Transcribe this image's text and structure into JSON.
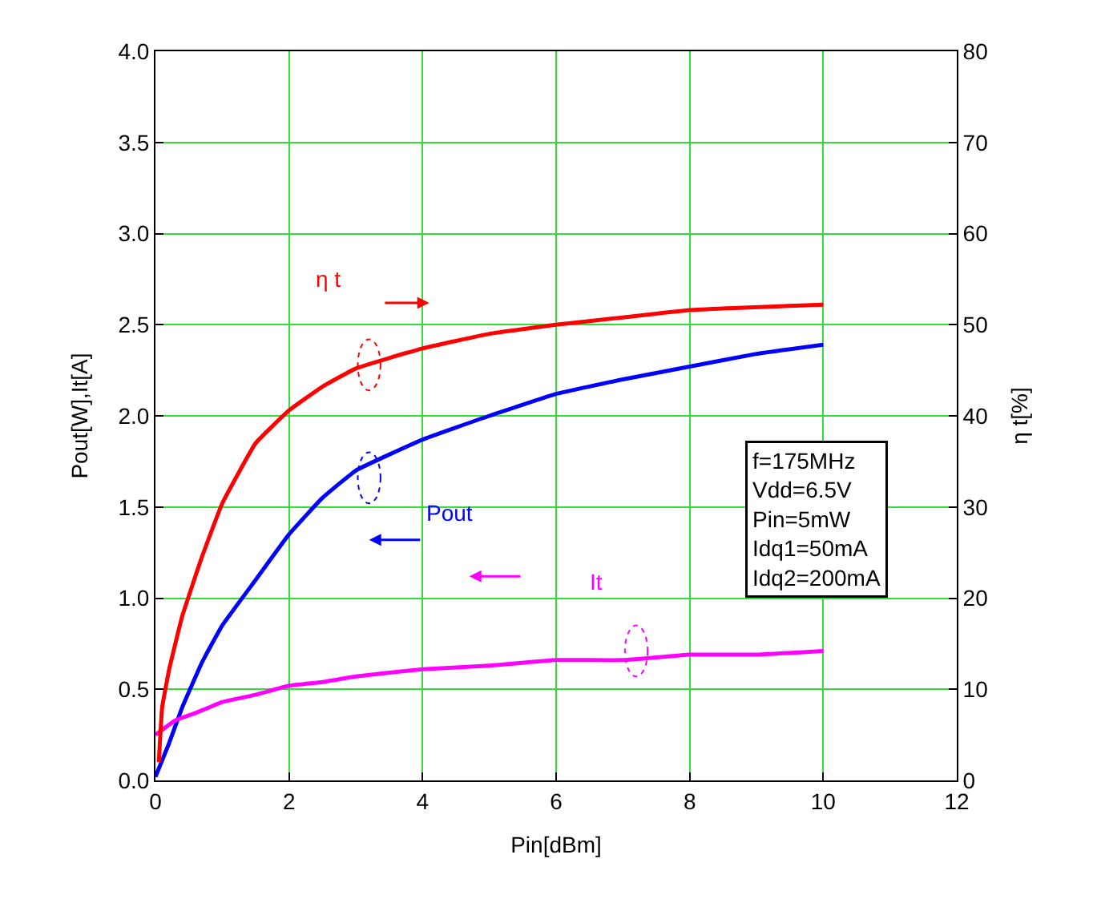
{
  "chart_data": {
    "type": "line",
    "xlabel": "Pin[dBm]",
    "ylabel": "Pout[W],It[A]",
    "y2label": "η t[%]",
    "xlim": [
      0,
      12
    ],
    "xticks": [
      0,
      2,
      4,
      6,
      8,
      10,
      12
    ],
    "ylim": [
      0,
      4
    ],
    "yticks": [
      {
        "value": 0,
        "label": "0.0"
      },
      {
        "value": 0.5,
        "label": "0.5"
      },
      {
        "value": 1,
        "label": "1.0"
      },
      {
        "value": 1.5,
        "label": "1.5"
      },
      {
        "value": 2,
        "label": "2.0"
      },
      {
        "value": 2.5,
        "label": "2.5"
      },
      {
        "value": 3,
        "label": "3.0"
      },
      {
        "value": 3.5,
        "label": "3.5"
      },
      {
        "value": 4,
        "label": "4.0"
      }
    ],
    "y2lim": [
      0,
      80
    ],
    "y2ticks": [
      0,
      10,
      20,
      30,
      40,
      50,
      60,
      70,
      80
    ],
    "grid": true,
    "legend": false,
    "marker": "none",
    "line_style": "solid",
    "series": [
      {
        "name": "η t",
        "color": "#ff0000",
        "axis": "y2",
        "x": [
          0.05,
          0.1,
          0.2,
          0.4,
          0.7,
          1,
          1.5,
          2,
          2.5,
          3,
          4,
          5,
          6,
          7,
          8,
          10
        ],
        "values": [
          2,
          8,
          12,
          18,
          24.6,
          30.4,
          37,
          40.6,
          43.2,
          45.2,
          47.4,
          49,
          50,
          50.8,
          51.6,
          52.2
        ]
      },
      {
        "name": "Pout",
        "color": "#0000ff",
        "x": [
          0,
          0.2,
          0.4,
          0.7,
          1,
          1.5,
          2,
          2.5,
          3,
          4,
          5,
          6,
          7,
          8,
          9,
          10
        ],
        "values": [
          0.02,
          0.2,
          0.4,
          0.65,
          0.85,
          1.1,
          1.35,
          1.55,
          1.7,
          1.87,
          2.0,
          2.12,
          2.2,
          2.27,
          2.34,
          2.39
        ]
      },
      {
        "name": "It",
        "color": "#ff00ff",
        "x": [
          0,
          0.3,
          0.6,
          0.8,
          1,
          1.5,
          2,
          2.5,
          3,
          4,
          5,
          6,
          7,
          8,
          9,
          10
        ],
        "values": [
          0.25,
          0.33,
          0.37,
          0.4,
          0.43,
          0.47,
          0.52,
          0.54,
          0.57,
          0.61,
          0.63,
          0.66,
          0.66,
          0.69,
          0.69,
          0.71
        ]
      }
    ],
    "annotations": [
      "f=175MHz",
      "Vdd=6.5V",
      "Pin=5mW",
      "Idq1=50mA",
      "Idq2=200mA"
    ]
  }
}
